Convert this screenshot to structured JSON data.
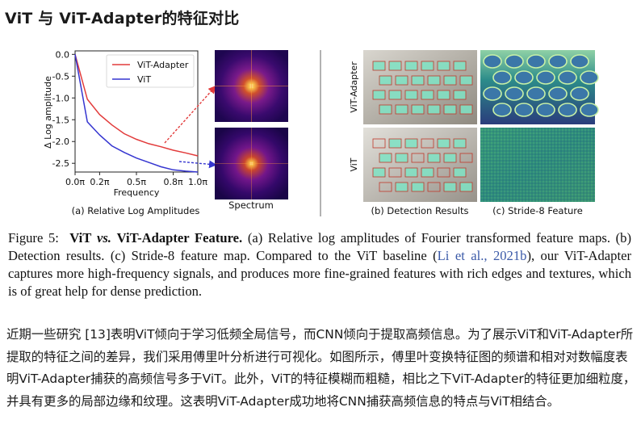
{
  "page_title": "ViT 与 ViT-Adapter的特征对比",
  "chart_data": {
    "type": "line",
    "x": [
      0.0,
      0.1,
      0.2,
      0.3,
      0.4,
      0.5,
      0.6,
      0.7,
      0.8,
      0.9,
      1.0
    ],
    "series": [
      {
        "name": "ViT-Adapter",
        "color": "#e23b3b",
        "values": [
          0.0,
          -1.03,
          -1.38,
          -1.62,
          -1.82,
          -1.95,
          -2.05,
          -2.12,
          -2.2,
          -2.26,
          -2.33
        ]
      },
      {
        "name": "ViT",
        "color": "#3535d0",
        "values": [
          0.0,
          -1.55,
          -1.85,
          -2.1,
          -2.25,
          -2.38,
          -2.48,
          -2.58,
          -2.65,
          -2.68,
          -2.7
        ]
      }
    ],
    "xlabel": "Frequency",
    "ylabel": "Δ Log amplitude",
    "xlim": [
      0,
      1.0
    ],
    "ylim": [
      -2.7,
      0.08
    ],
    "xticks": [
      "0.0π",
      "0.2π",
      "0.5π",
      "0.8π",
      "1.0π"
    ],
    "xtick_values": [
      0.0,
      0.2,
      0.5,
      0.8,
      1.0
    ],
    "yticks": [
      "0.0",
      "-0.5",
      "-1.0",
      "-1.5",
      "-2.0",
      "-2.5"
    ],
    "ytick_values": [
      0.0,
      -0.5,
      -1.0,
      -1.5,
      -2.0,
      -2.5
    ],
    "legend_position": "top-right",
    "grid": false
  },
  "panels": {
    "a_caption": "(a) Relative Log Amplitudes",
    "spectrum_label": "Spectrum",
    "b_caption": "(b) Detection Results",
    "c_caption": "(c) Stride-8 Feature",
    "row_label_adapter": "ViT-Adapter",
    "row_label_vit": "ViT"
  },
  "caption": {
    "figure_no": "Figure 5:",
    "title_vit": "ViT",
    "title_vs": "vs.",
    "title_rest": "ViT-Adapter Feature.",
    "body_1": " (a) Relative log amplitudes of Fourier transformed feature maps. (b) Detection results. (c) Stride-8 feature map. Compared to the ViT baseline (",
    "citation": "Li et al., 2021b",
    "body_2": "), our ViT-Adapter captures more high-frequency signals, and produces more fine-grained features with rich edges and textures, which is of great help for dense prediction."
  },
  "paragraph": "近期一些研究 [13]表明ViT倾向于学习低频全局信号，而CNN倾向于提取高频信息。为了展示ViT和ViT-Adapter所提取的特征之间的差异，我们采用傅里叶分析进行可视化。如图所示，傅里叶变换特征图的频谱和相对对数幅度表明ViT-Adapter捕获的高频信号多于ViT。此外，ViT的特征模糊而粗糙，相比之下ViT-Adapter的特征更加细粒度，并具有更多的局部边缘和纹理。这表明ViT-Adapter成功地将CNN捕获高频信息的特点与ViT相结合。"
}
